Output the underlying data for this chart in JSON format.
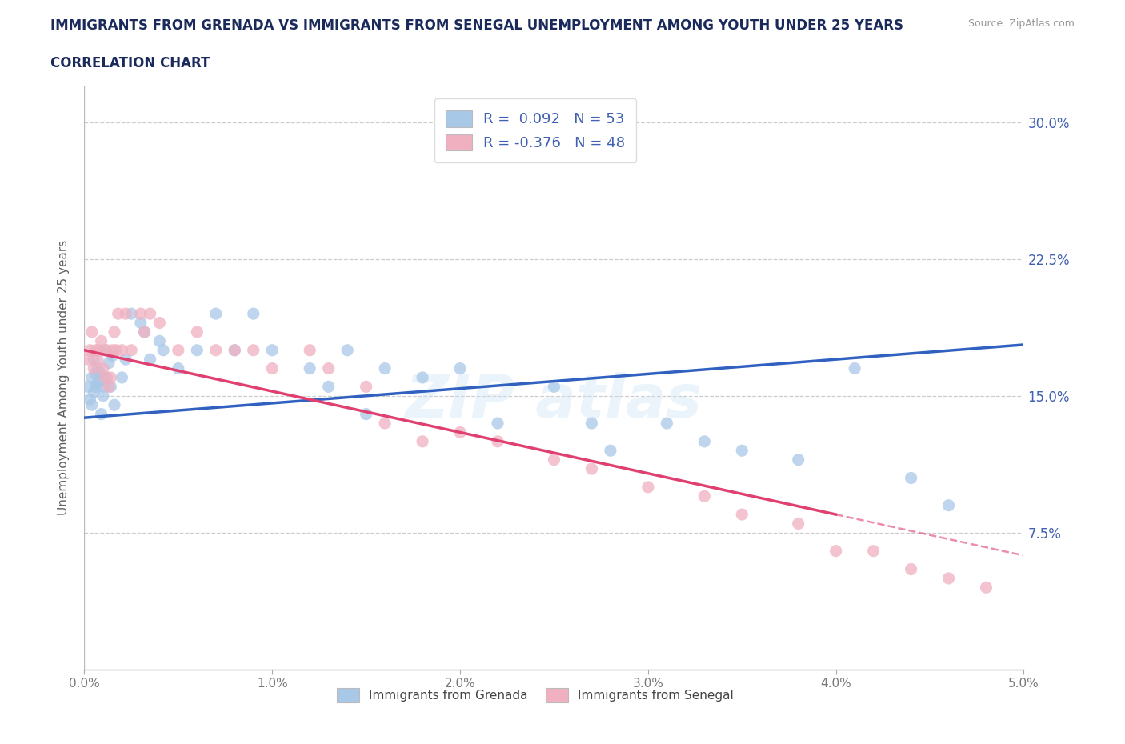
{
  "title_line1": "IMMIGRANTS FROM GRENADA VS IMMIGRANTS FROM SENEGAL UNEMPLOYMENT AMONG YOUTH UNDER 25 YEARS",
  "title_line2": "CORRELATION CHART",
  "source": "Source: ZipAtlas.com",
  "ylabel": "Unemployment Among Youth under 25 years",
  "xlim": [
    0.0,
    0.05
  ],
  "ylim": [
    0.0,
    0.32
  ],
  "yticks": [
    0.0,
    0.075,
    0.15,
    0.225,
    0.3
  ],
  "ytick_labels": [
    "",
    "7.5%",
    "15.0%",
    "22.5%",
    "30.0%"
  ],
  "xticks": [
    0.0,
    0.01,
    0.02,
    0.03,
    0.04,
    0.05
  ],
  "xtick_labels": [
    "0.0%",
    "1.0%",
    "2.0%",
    "3.0%",
    "4.0%",
    "5.0%"
  ],
  "grenada_color": "#a8c8e8",
  "senegal_color": "#f0b0c0",
  "grenada_line_color": "#3060c0",
  "senegal_line_color": "#e04070",
  "grenada_R": 0.092,
  "grenada_N": 53,
  "senegal_R": -0.376,
  "senegal_N": 48,
  "label_color": "#4060b0",
  "title_color": "#1a2a5a",
  "axis_label_color": "#606060",
  "source_color": "#999999",
  "grenada_legend": "Immigrants from Grenada",
  "senegal_legend": "Immigrants from Senegal",
  "grenada_x": [
    0.0002,
    0.0003,
    0.0004,
    0.0004,
    0.0005,
    0.0005,
    0.0006,
    0.0006,
    0.0007,
    0.0007,
    0.0008,
    0.0008,
    0.0009,
    0.001,
    0.001,
    0.0011,
    0.0012,
    0.0013,
    0.0014,
    0.0015,
    0.0016,
    0.002,
    0.0022,
    0.0025,
    0.003,
    0.0032,
    0.0035,
    0.004,
    0.0042,
    0.005,
    0.006,
    0.007,
    0.008,
    0.009,
    0.01,
    0.012,
    0.013,
    0.014,
    0.015,
    0.016,
    0.018,
    0.02,
    0.022,
    0.025,
    0.027,
    0.028,
    0.031,
    0.033,
    0.035,
    0.038,
    0.041,
    0.044,
    0.046
  ],
  "grenada_y": [
    0.155,
    0.148,
    0.16,
    0.145,
    0.17,
    0.152,
    0.162,
    0.155,
    0.165,
    0.157,
    0.158,
    0.163,
    0.14,
    0.15,
    0.155,
    0.175,
    0.16,
    0.168,
    0.155,
    0.172,
    0.145,
    0.16,
    0.17,
    0.195,
    0.19,
    0.185,
    0.17,
    0.18,
    0.175,
    0.165,
    0.175,
    0.195,
    0.175,
    0.195,
    0.175,
    0.165,
    0.155,
    0.175,
    0.14,
    0.165,
    0.16,
    0.165,
    0.135,
    0.155,
    0.135,
    0.12,
    0.135,
    0.125,
    0.12,
    0.115,
    0.165,
    0.105,
    0.09
  ],
  "senegal_x": [
    0.0002,
    0.0003,
    0.0004,
    0.0005,
    0.0006,
    0.0007,
    0.0008,
    0.0009,
    0.001,
    0.0011,
    0.0012,
    0.0013,
    0.0014,
    0.0015,
    0.0016,
    0.0017,
    0.0018,
    0.002,
    0.0022,
    0.0025,
    0.003,
    0.0032,
    0.0035,
    0.004,
    0.005,
    0.006,
    0.007,
    0.008,
    0.009,
    0.01,
    0.012,
    0.013,
    0.015,
    0.016,
    0.018,
    0.02,
    0.022,
    0.025,
    0.027,
    0.03,
    0.033,
    0.035,
    0.038,
    0.04,
    0.042,
    0.044,
    0.046,
    0.048
  ],
  "senegal_y": [
    0.17,
    0.175,
    0.185,
    0.165,
    0.175,
    0.17,
    0.175,
    0.18,
    0.165,
    0.16,
    0.175,
    0.155,
    0.16,
    0.175,
    0.185,
    0.175,
    0.195,
    0.175,
    0.195,
    0.175,
    0.195,
    0.185,
    0.195,
    0.19,
    0.175,
    0.185,
    0.175,
    0.175,
    0.175,
    0.165,
    0.175,
    0.165,
    0.155,
    0.135,
    0.125,
    0.13,
    0.125,
    0.115,
    0.11,
    0.1,
    0.095,
    0.085,
    0.08,
    0.065,
    0.065,
    0.055,
    0.05,
    0.045
  ],
  "grenada_line_y0": 0.138,
  "grenada_line_y1": 0.178,
  "senegal_line_y0": 0.175,
  "senegal_line_y1": 0.085
}
